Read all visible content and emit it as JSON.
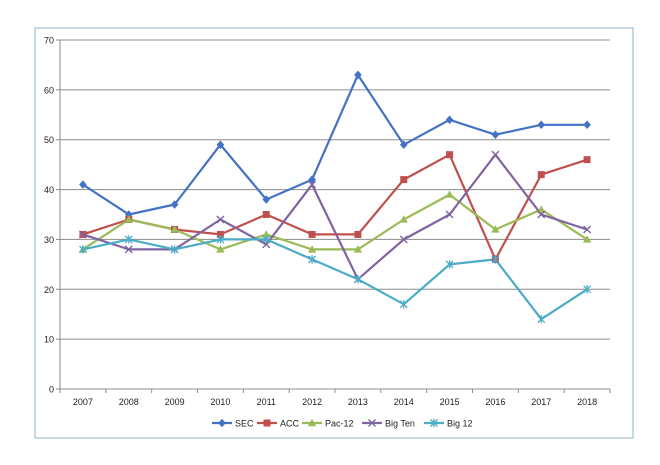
{
  "chart_data": {
    "type": "line",
    "title": "",
    "xlabel": "",
    "ylabel": "",
    "x": [
      "2007",
      "2008",
      "2009",
      "2010",
      "2011",
      "2012",
      "2013",
      "2014",
      "2015",
      "2016",
      "2017",
      "2018"
    ],
    "ylim": [
      0,
      70
    ],
    "yticks": [
      0,
      10,
      20,
      30,
      40,
      50,
      60,
      70
    ],
    "grid": true,
    "legend_position": "bottom",
    "series": [
      {
        "name": "SEC",
        "color": "#4472c4",
        "marker": "diamond",
        "values": [
          41,
          35,
          37,
          49,
          38,
          42,
          63,
          49,
          54,
          51,
          53,
          53
        ]
      },
      {
        "name": "ACC",
        "color": "#c0504d",
        "marker": "square",
        "values": [
          31,
          34,
          32,
          31,
          35,
          31,
          31,
          42,
          47,
          26,
          43,
          46
        ]
      },
      {
        "name": "Pac-12",
        "color": "#9bbb59",
        "marker": "triangle",
        "values": [
          28,
          34,
          32,
          28,
          31,
          28,
          28,
          34,
          39,
          32,
          36,
          30
        ]
      },
      {
        "name": "Big Ten",
        "color": "#8064a2",
        "marker": "x",
        "values": [
          31,
          28,
          28,
          34,
          29,
          41,
          22,
          30,
          35,
          47,
          35,
          32
        ]
      },
      {
        "name": "Big 12",
        "color": "#4bacc6",
        "marker": "star",
        "values": [
          28,
          30,
          28,
          30,
          30,
          26,
          22,
          17,
          25,
          26,
          14,
          20
        ]
      }
    ]
  }
}
